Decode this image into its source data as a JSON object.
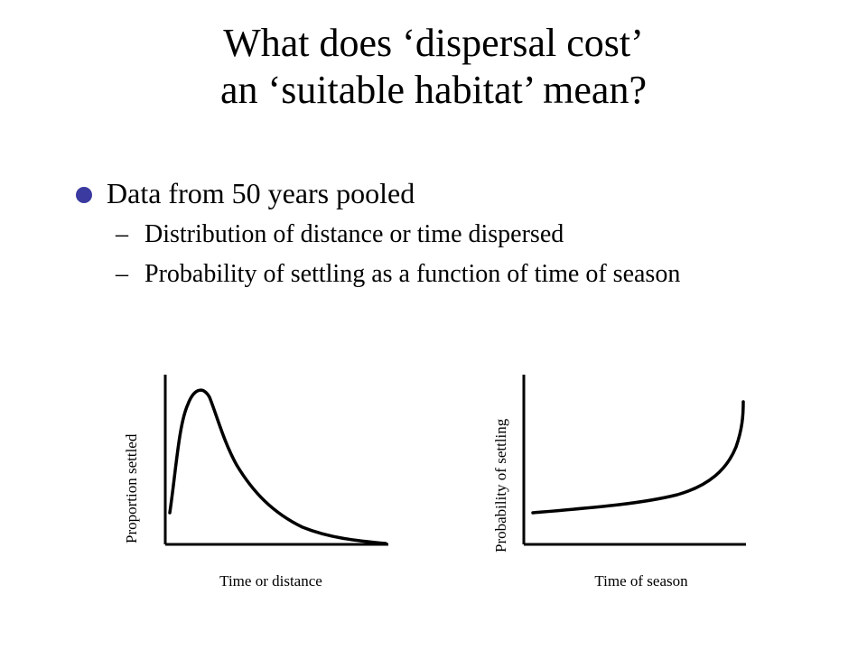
{
  "slide": {
    "title_line1": "What does ‘dispersal cost’",
    "title_line2": "an ‘suitable habitat’ mean?",
    "bullet": "Data from 50 years pooled",
    "sub_dash": "–",
    "sub_bullets": [
      "Distribution of distance or time dispersed",
      "Probability of settling as a function of time of season"
    ],
    "bullet_color": "#3a3aa0"
  },
  "charts": {
    "left": {
      "ylabel": "Proportion settled",
      "xlabel": "Time or distance",
      "curve_shape": "rises steeply to an early peak, then decays toward zero"
    },
    "right": {
      "ylabel": "Probability of settling",
      "xlabel": "Time of season",
      "curve_shape": "low and nearly flat, rising sharply near the end"
    }
  }
}
